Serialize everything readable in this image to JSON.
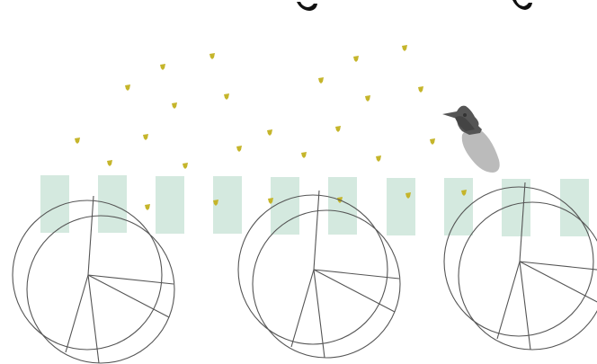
{
  "scene": {
    "background": "#ffffff",
    "pillar_color": "#d4e9df",
    "seed_color": "#c5b52b",
    "wheel_color": "#555555",
    "bird_color": "#555555",
    "bird_shadow_color": "#bbbbbb",
    "pillar_count": 10,
    "wheel_count": 3,
    "seed_count": 30,
    "icons": [
      "bird-icon",
      "wheel-icon",
      "seed-icon"
    ]
  }
}
